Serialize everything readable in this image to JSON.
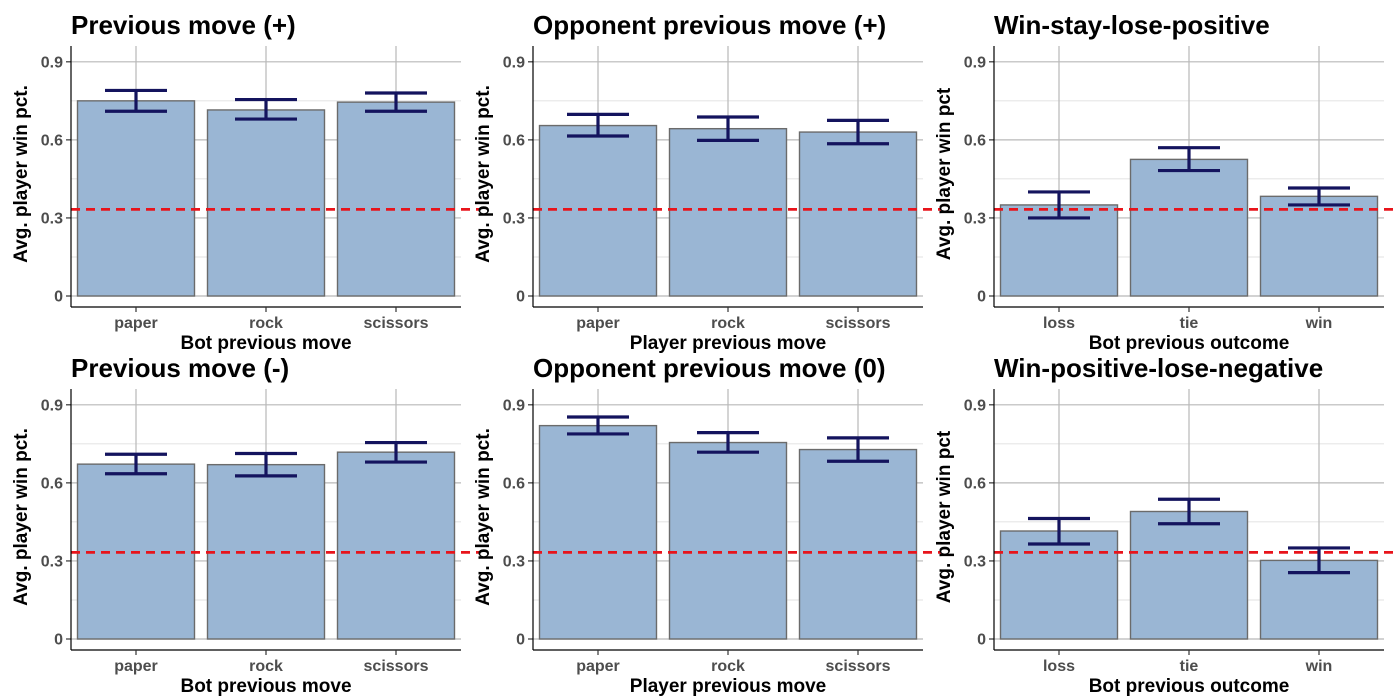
{
  "chart_data": [
    {
      "type": "bar",
      "title": "Previous move (+)",
      "xlabel": "Bot previous move",
      "ylabel": "Avg. player win pct.",
      "categories": [
        "paper",
        "rock",
        "scissors"
      ],
      "values": [
        0.75,
        0.715,
        0.745
      ],
      "error_low": [
        0.71,
        0.68,
        0.71
      ],
      "error_high": [
        0.79,
        0.755,
        0.78
      ],
      "reference_line": 0.333,
      "ylim": [
        0,
        0.93
      ],
      "yticks": [
        0,
        0.3,
        0.6,
        0.9
      ],
      "ytick_labels": [
        "0",
        "0.3",
        "0.6",
        "0.9"
      ],
      "grid": true
    },
    {
      "type": "bar",
      "title": "Opponent previous move (+)",
      "xlabel": "Player previous move",
      "ylabel": "Avg. player win pct.",
      "categories": [
        "paper",
        "rock",
        "scissors"
      ],
      "values": [
        0.655,
        0.643,
        0.63
      ],
      "error_low": [
        0.615,
        0.598,
        0.585
      ],
      "error_high": [
        0.698,
        0.688,
        0.675
      ],
      "reference_line": 0.333,
      "ylim": [
        0,
        0.93
      ],
      "yticks": [
        0,
        0.3,
        0.6,
        0.9
      ],
      "ytick_labels": [
        "0",
        "0.3",
        "0.6",
        "0.9"
      ],
      "grid": true
    },
    {
      "type": "bar",
      "title": "Win-stay-lose-positive",
      "xlabel": "Bot previous outcome",
      "ylabel": "Avg. player win pct",
      "categories": [
        "loss",
        "tie",
        "win"
      ],
      "values": [
        0.35,
        0.525,
        0.383
      ],
      "error_low": [
        0.3,
        0.482,
        0.35
      ],
      "error_high": [
        0.4,
        0.57,
        0.415
      ],
      "reference_line": 0.333,
      "ylim": [
        0,
        0.93
      ],
      "yticks": [
        0,
        0.3,
        0.6,
        0.9
      ],
      "ytick_labels": [
        "0",
        "0.3",
        "0.6",
        "0.9"
      ],
      "grid": true
    },
    {
      "type": "bar",
      "title": "Previous move (-)",
      "xlabel": "Bot previous move",
      "ylabel": "Avg. player win pct.",
      "categories": [
        "paper",
        "rock",
        "scissors"
      ],
      "values": [
        0.672,
        0.67,
        0.718
      ],
      "error_low": [
        0.635,
        0.627,
        0.68
      ],
      "error_high": [
        0.71,
        0.713,
        0.755
      ],
      "reference_line": 0.333,
      "ylim": [
        0,
        0.93
      ],
      "yticks": [
        0,
        0.3,
        0.6,
        0.9
      ],
      "ytick_labels": [
        "0",
        "0.3",
        "0.6",
        "0.9"
      ],
      "grid": true
    },
    {
      "type": "bar",
      "title": "Opponent previous move (0)",
      "xlabel": "Player previous move",
      "ylabel": "Avg. player win pct.",
      "categories": [
        "paper",
        "rock",
        "scissors"
      ],
      "values": [
        0.82,
        0.755,
        0.728
      ],
      "error_low": [
        0.788,
        0.718,
        0.683
      ],
      "error_high": [
        0.853,
        0.793,
        0.773
      ],
      "reference_line": 0.333,
      "ylim": [
        0,
        0.93
      ],
      "yticks": [
        0,
        0.3,
        0.6,
        0.9
      ],
      "ytick_labels": [
        "0",
        "0.3",
        "0.6",
        "0.9"
      ],
      "grid": true
    },
    {
      "type": "bar",
      "title": "Win-positive-lose-negative",
      "xlabel": "Bot previous outcome",
      "ylabel": "Avg. player win pct",
      "categories": [
        "loss",
        "tie",
        "win"
      ],
      "values": [
        0.415,
        0.49,
        0.302
      ],
      "error_low": [
        0.365,
        0.443,
        0.255
      ],
      "error_high": [
        0.463,
        0.537,
        0.35
      ],
      "reference_line": 0.333,
      "ylim": [
        0,
        0.93
      ],
      "yticks": [
        0,
        0.3,
        0.6,
        0.9
      ],
      "ytick_labels": [
        "0",
        "0.3",
        "0.6",
        "0.9"
      ],
      "grid": true
    }
  ],
  "colors": {
    "bar_fill": "#9ab6d4",
    "bar_stroke": "#6b6b6b",
    "error_bar": "#14145e",
    "reference_line": "#e8141b",
    "grid": "#b8b8b8"
  }
}
